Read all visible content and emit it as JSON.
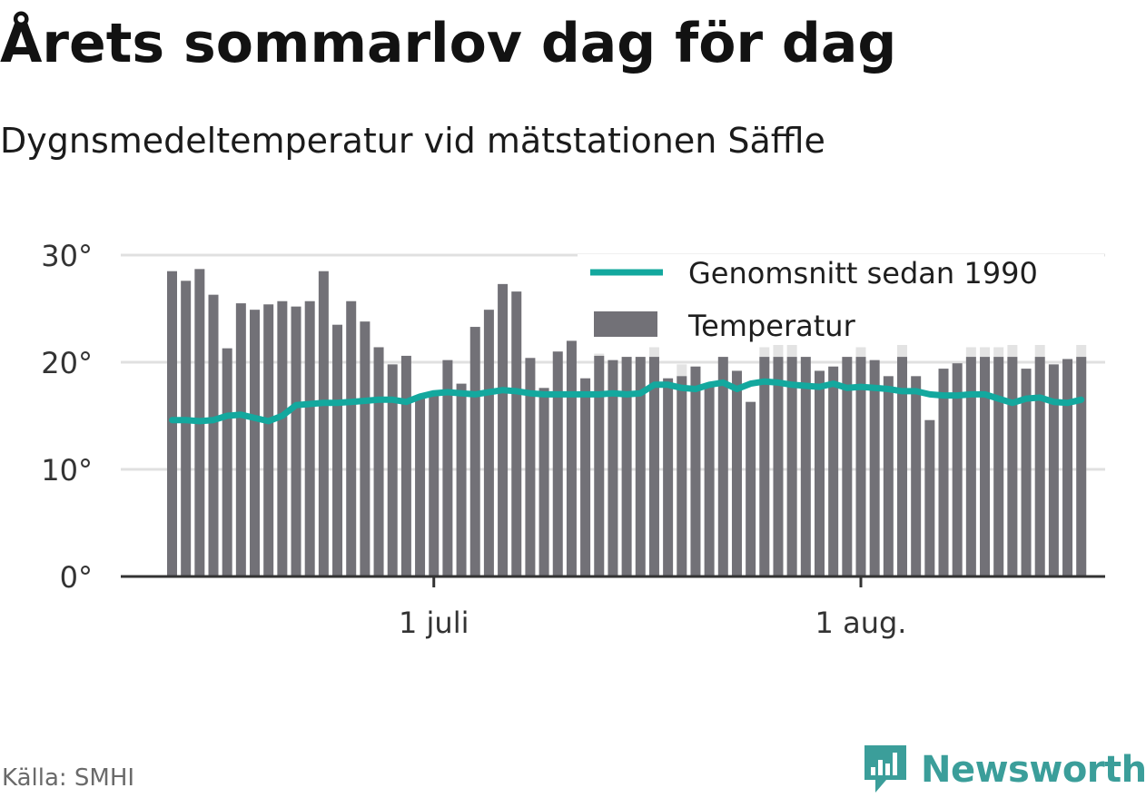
{
  "title": "Årets sommarlov dag för dag",
  "subtitle": "Dygnsmedeltemperatur vid mätstationen Säffle",
  "source": "Källa: SMHI",
  "brand": {
    "name": "Newsworthy",
    "icon": "newsworthy-logo-icon",
    "color": "#3b9e9a"
  },
  "colors": {
    "bar": "#727177",
    "bar_ghost": "#e3e3e3",
    "average_line": "#13a89e",
    "grid": "#e0e0e0",
    "axis": "#333333"
  },
  "chart_data": {
    "type": "bar",
    "ylim": [
      0,
      30
    ],
    "y_ticks": [
      0,
      10,
      20,
      30
    ],
    "y_tick_labels": [
      "0°",
      "10°",
      "20°",
      "30°"
    ],
    "x_ticks": [
      {
        "date": "2019-07-01",
        "label": "1 juli"
      },
      {
        "date": "2019-08-01",
        "label": "1 aug."
      }
    ],
    "grid": true,
    "legend_position": "top-right",
    "x": [
      "2019-06-12",
      "2019-06-13",
      "2019-06-14",
      "2019-06-15",
      "2019-06-16",
      "2019-06-17",
      "2019-06-18",
      "2019-06-19",
      "2019-06-20",
      "2019-06-21",
      "2019-06-22",
      "2019-06-23",
      "2019-06-24",
      "2019-06-25",
      "2019-06-26",
      "2019-06-27",
      "2019-06-28",
      "2019-06-29",
      "2019-06-30",
      "2019-07-01",
      "2019-07-02",
      "2019-07-03",
      "2019-07-04",
      "2019-07-05",
      "2019-07-06",
      "2019-07-07",
      "2019-07-08",
      "2019-07-09",
      "2019-07-10",
      "2019-07-11",
      "2019-07-12",
      "2019-07-13",
      "2019-07-14",
      "2019-07-15",
      "2019-07-16",
      "2019-07-17",
      "2019-07-18",
      "2019-07-19",
      "2019-07-20",
      "2019-07-21",
      "2019-07-22",
      "2019-07-23",
      "2019-07-24",
      "2019-07-25",
      "2019-07-26",
      "2019-07-27",
      "2019-07-28",
      "2019-07-29",
      "2019-07-30",
      "2019-07-31",
      "2019-08-01",
      "2019-08-02",
      "2019-08-03",
      "2019-08-04",
      "2019-08-05",
      "2019-08-06",
      "2019-08-07",
      "2019-08-08",
      "2019-08-09",
      "2019-08-10",
      "2019-08-11",
      "2019-08-12",
      "2019-08-13",
      "2019-08-14",
      "2019-08-15",
      "2019-08-16",
      "2019-08-17",
      "2019-08-18"
    ],
    "series": [
      {
        "name": "Temperatur",
        "values": [
          28.5,
          27.6,
          28.7,
          26.3,
          21.3,
          25.5,
          24.9,
          25.4,
          25.7,
          25.2,
          25.7,
          28.5,
          23.5,
          25.7,
          23.8,
          21.4,
          19.8,
          20.6,
          16.9,
          17.2,
          20.2,
          18.0,
          23.3,
          24.9,
          27.3,
          26.6,
          20.4,
          17.6,
          21.0,
          22.0,
          18.5,
          20.6,
          20.2,
          20.5,
          20.5,
          20.5,
          18.5,
          18.7,
          19.6,
          18.0,
          20.5,
          19.2,
          16.3,
          20.5,
          20.5,
          20.5,
          20.5,
          19.2,
          19.6,
          20.5,
          20.5,
          20.2,
          18.7,
          20.5,
          18.7,
          14.6,
          19.4,
          19.9,
          20.5,
          20.5,
          20.5,
          20.5,
          19.4,
          20.5,
          19.8,
          20.3,
          20.5,
          null
        ]
      },
      {
        "name": "",
        "values": [
          null,
          null,
          null,
          null,
          null,
          null,
          null,
          null,
          null,
          null,
          null,
          null,
          null,
          null,
          null,
          null,
          null,
          null,
          null,
          null,
          null,
          null,
          null,
          null,
          null,
          null,
          null,
          null,
          null,
          null,
          null,
          20.8,
          null,
          null,
          null,
          21.4,
          null,
          19.8,
          null,
          null,
          null,
          null,
          null,
          21.4,
          22.0,
          21.8,
          null,
          null,
          null,
          null,
          21.4,
          null,
          null,
          22.8,
          null,
          null,
          null,
          null,
          21.4,
          21.4,
          21.4,
          22.0,
          null,
          22.6,
          null,
          null,
          21.8,
          null
        ]
      },
      {
        "name": "Genomsnitt sedan 1990",
        "type": "line",
        "values": [
          14.6,
          14.6,
          14.5,
          14.6,
          15.0,
          15.1,
          14.8,
          14.5,
          15.0,
          16.0,
          16.1,
          16.2,
          16.2,
          16.3,
          16.4,
          16.5,
          16.5,
          16.3,
          16.8,
          17.1,
          17.2,
          17.1,
          17.0,
          17.2,
          17.4,
          17.3,
          17.1,
          17.0,
          17.0,
          17.0,
          17.0,
          17.0,
          17.1,
          17.0,
          17.1,
          17.9,
          17.9,
          17.6,
          17.5,
          17.9,
          18.1,
          17.5,
          18.0,
          18.2,
          18.1,
          17.9,
          17.8,
          17.7,
          18.0,
          17.6,
          17.7,
          17.6,
          17.5,
          17.3,
          17.3,
          17.0,
          16.9,
          16.9,
          17.0,
          17.0,
          16.6,
          16.2,
          16.6,
          16.7,
          16.3,
          16.2,
          16.5,
          null
        ]
      }
    ]
  }
}
